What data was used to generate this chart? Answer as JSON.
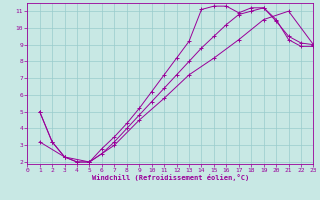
{
  "xlabel": "Windchill (Refroidissement éolien,°C)",
  "bg_color": "#c8e8e4",
  "line_color": "#990099",
  "grid_color": "#99cccc",
  "xmin": 0,
  "xmax": 23,
  "ymin": 2,
  "ymax": 11.5,
  "xticks": [
    0,
    1,
    2,
    3,
    4,
    5,
    6,
    7,
    8,
    9,
    10,
    11,
    12,
    13,
    14,
    15,
    16,
    17,
    18,
    19,
    20,
    21,
    22,
    23
  ],
  "yticks": [
    2,
    3,
    4,
    5,
    6,
    7,
    8,
    9,
    10,
    11
  ],
  "lines": [
    {
      "x": [
        1,
        2,
        3,
        4,
        5,
        6,
        7,
        8,
        9,
        10,
        11,
        12,
        13,
        14,
        15,
        16,
        17,
        18,
        19,
        20,
        21,
        22,
        23
      ],
      "y": [
        5.0,
        3.2,
        2.3,
        2.0,
        2.0,
        2.8,
        3.5,
        4.3,
        5.2,
        6.2,
        7.2,
        8.2,
        9.2,
        11.1,
        11.3,
        11.3,
        10.9,
        11.2,
        11.2,
        10.4,
        9.5,
        9.1,
        9.0
      ]
    },
    {
      "x": [
        1,
        2,
        3,
        4,
        5,
        6,
        7,
        8,
        9,
        10,
        11,
        12,
        13,
        14,
        15,
        16,
        17,
        18,
        19,
        20,
        21,
        22,
        23
      ],
      "y": [
        5.0,
        3.2,
        2.3,
        2.0,
        2.0,
        2.5,
        3.2,
        4.0,
        4.8,
        5.6,
        6.4,
        7.2,
        8.0,
        8.8,
        9.5,
        10.2,
        10.8,
        11.0,
        11.2,
        10.5,
        9.3,
        8.9,
        8.9
      ]
    },
    {
      "x": [
        1,
        3,
        5,
        7,
        9,
        11,
        13,
        15,
        17,
        19,
        21,
        23
      ],
      "y": [
        3.2,
        2.3,
        2.0,
        3.0,
        4.5,
        5.8,
        7.2,
        8.2,
        9.3,
        10.5,
        11.0,
        9.0
      ]
    }
  ]
}
